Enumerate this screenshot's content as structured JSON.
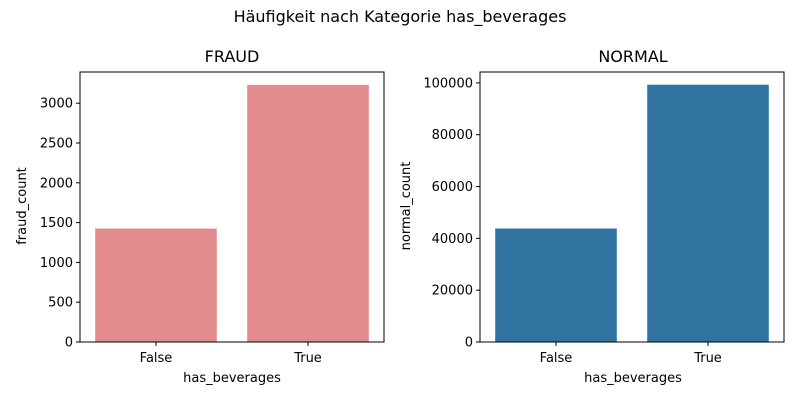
{
  "figure": {
    "suptitle": "Häufigkeit nach Kategorie has_beverages"
  },
  "chart_data": [
    {
      "type": "bar",
      "title": "FRAUD",
      "categories": [
        "False",
        "True"
      ],
      "values": [
        1425,
        3230
      ],
      "xlabel": "has_beverages",
      "ylabel": "fraud_count",
      "ylim": [
        0,
        3392
      ],
      "yticks": [
        0,
        500,
        1000,
        1500,
        2000,
        2500,
        3000
      ],
      "color": "#e38c8d"
    },
    {
      "type": "bar",
      "title": "NORMAL",
      "categories": [
        "False",
        "True"
      ],
      "values": [
        43800,
        99300
      ],
      "xlabel": "has_beverages",
      "ylabel": "normal_count",
      "ylim": [
        0,
        104200
      ],
      "yticks": [
        0,
        20000,
        40000,
        60000,
        80000,
        100000
      ],
      "color": "#3274a1"
    }
  ]
}
